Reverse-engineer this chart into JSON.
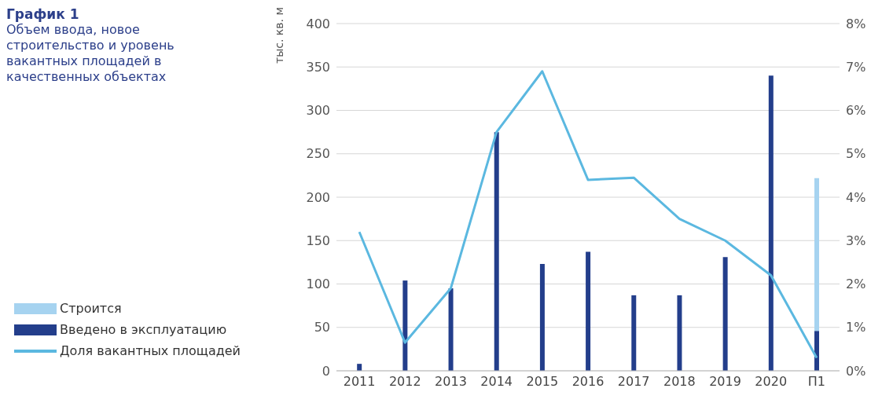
{
  "chart_data": {
    "type": "bar",
    "title": "График 1",
    "subtitle": "Объем ввода, новое строительство и уровень вакантных площадей в качественных объектах",
    "ylabel": "тыс. кв. м",
    "categories": [
      "2011",
      "2012",
      "2013",
      "2014",
      "2015",
      "2016",
      "2017",
      "2018",
      "2019",
      "2020",
      "П1"
    ],
    "stacked": true,
    "series": [
      {
        "name": "Введено в эксплуатацию",
        "color": "#233e8b",
        "values": [
          8,
          104,
          95,
          275,
          123,
          137,
          87,
          87,
          131,
          340,
          46
        ]
      },
      {
        "name": "Строится",
        "color": "#a6d3f0",
        "values": [
          null,
          null,
          null,
          null,
          null,
          null,
          null,
          null,
          null,
          null,
          176
        ]
      },
      {
        "type": "line",
        "axis": "y2",
        "name": "Доля вакантных площадей",
        "color": "#5bb8e0",
        "values": [
          3.2,
          0.65,
          1.9,
          5.5,
          6.9,
          4.4,
          4.45,
          3.5,
          3.0,
          2.2,
          0.3
        ]
      }
    ],
    "ylim": [
      0,
      400
    ],
    "yticks": [
      0,
      50,
      100,
      150,
      200,
      250,
      300,
      350,
      400
    ],
    "y2lim": [
      0,
      8
    ],
    "y2ticks": [
      {
        "value": 0,
        "label": "0%"
      },
      {
        "value": 1,
        "label": "1%"
      },
      {
        "value": 2,
        "label": "2%"
      },
      {
        "value": 3,
        "label": "3%"
      },
      {
        "value": 4,
        "label": "4%"
      },
      {
        "value": 5,
        "label": "5%"
      },
      {
        "value": 6,
        "label": "6%"
      },
      {
        "value": 7,
        "label": "7%"
      },
      {
        "value": 8,
        "label": "8%"
      }
    ],
    "grid": "y",
    "legend": "left",
    "marker": "none",
    "line_style": "solid"
  }
}
